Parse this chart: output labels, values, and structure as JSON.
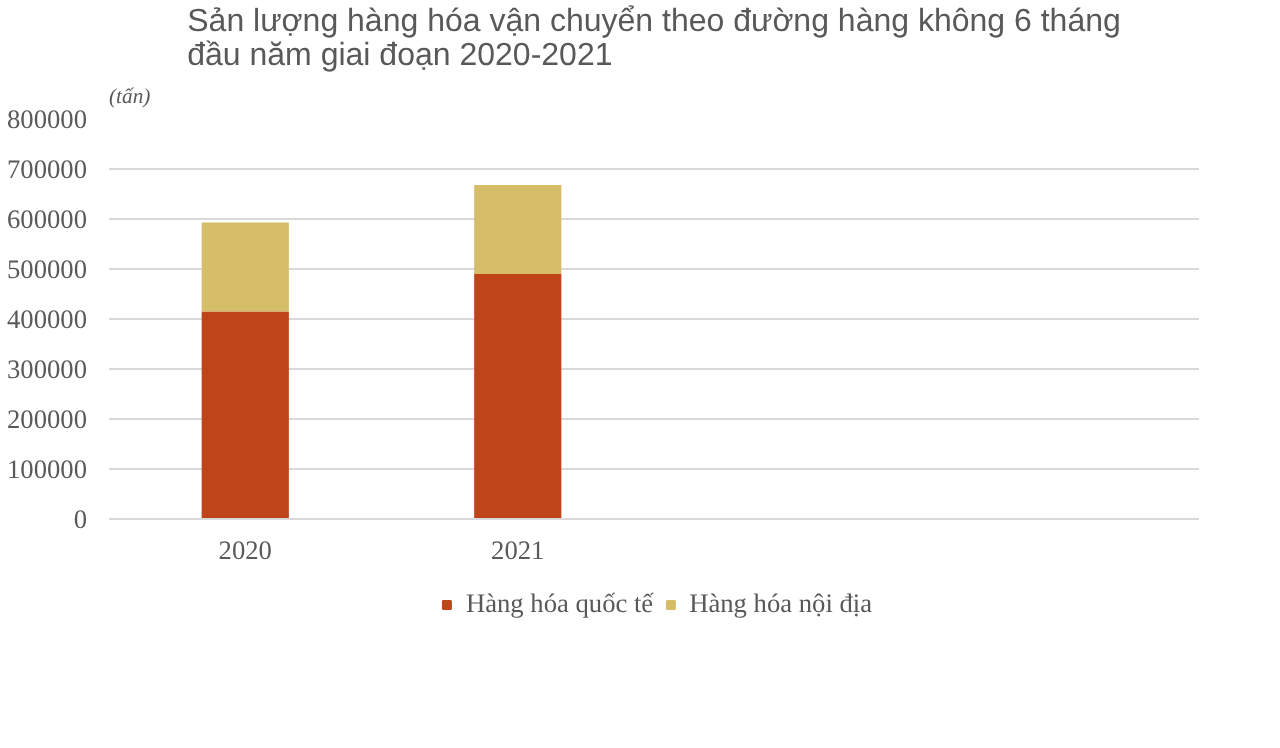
{
  "chart_data": {
    "type": "bar",
    "stacked": true,
    "title": "Sản lượng hàng hóa vận chuyển theo đường hàng không 6 tháng đầu năm giai đoạn 2020-2021",
    "ylabel": "(tấn)",
    "categories": [
      "2020",
      "2021",
      null,
      null
    ],
    "series": [
      {
        "name": "Hàng hóa quốc tế",
        "color": "#c0441a",
        "values": [
          415000,
          490000,
          null,
          null
        ]
      },
      {
        "name": "Hàng hóa nội địa",
        "color": "#d6bd6a",
        "values": [
          178000,
          178000,
          null,
          null
        ]
      }
    ],
    "ylim": [
      0,
      800000
    ],
    "yticks": [
      0,
      100000,
      200000,
      300000,
      400000,
      500000,
      600000,
      700000,
      800000
    ],
    "grid": "y",
    "legend": "bottom"
  }
}
